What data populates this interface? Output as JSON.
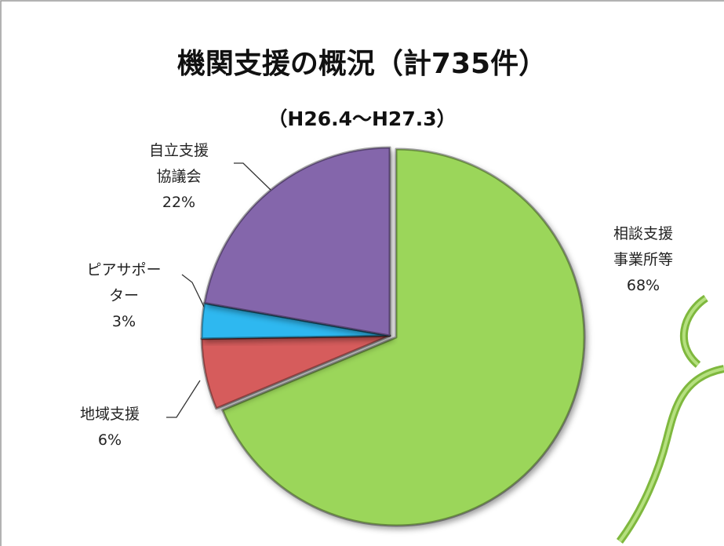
{
  "chart_data": {
    "type": "pie",
    "title": "機関支援の概況（計735件）",
    "subtitle": "（H26.4～H27.3）",
    "categories": [
      "相談支援\n事業所等",
      "地域支援",
      "ピアサポー\nター",
      "自立支援\n協議会"
    ],
    "values": [
      68,
      6,
      3,
      22
    ],
    "value_labels": [
      "68%",
      "6%",
      "3%",
      "22%"
    ],
    "colors": [
      "#9bd65a",
      "#d65c5c",
      "#2fb8f0",
      "#8466ab"
    ]
  }
}
